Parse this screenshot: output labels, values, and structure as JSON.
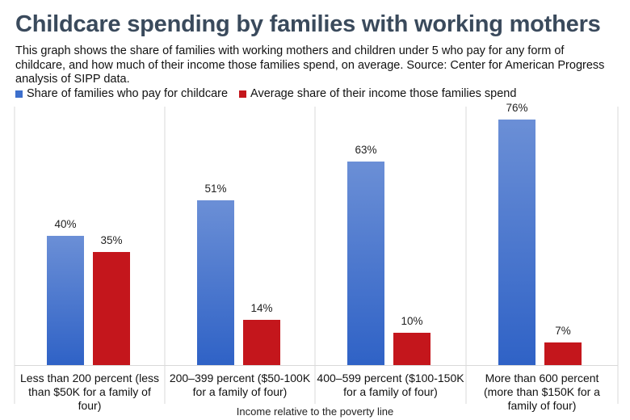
{
  "chart_data": {
    "type": "bar",
    "title": "Childcare spending by families with working mothers",
    "subtitle": "This graph shows the share of families with working mothers and children under 5 who pay for any form of childcare, and how much of their income those families spend, on average. Source: Center for American Progress analysis of SIPP data.",
    "categories": [
      [
        "Less than 200 percent (less",
        "than $50K for a family of",
        "four)"
      ],
      [
        "200–399 percent ($50-100K",
        "for a family of four)"
      ],
      [
        "400–599 percent ($100-150K",
        "for a family of four)"
      ],
      [
        "More than 600 percent",
        "(more than $150K for a",
        "family of four)"
      ]
    ],
    "series": [
      {
        "name": "Share of families who pay for childcare",
        "values": [
          40,
          51,
          63,
          76
        ],
        "labels": [
          "40%",
          "51%",
          "63%",
          "76%"
        ],
        "color": "#3d6fcc",
        "color_light": "#6b8fd6"
      },
      {
        "name": "Average share of their income those families spend",
        "values": [
          35,
          14,
          10,
          7
        ],
        "labels": [
          "35%",
          "14%",
          "10%",
          "7%"
        ],
        "color": "#c4161c"
      }
    ],
    "xlabel": "Income relative to the poverty line",
    "ylabel": "",
    "ylim": [
      0,
      80
    ],
    "grid": false,
    "legend": "top-left"
  },
  "colors": {
    "title": "#3a4a5c",
    "divider": "#d9d9d9"
  }
}
